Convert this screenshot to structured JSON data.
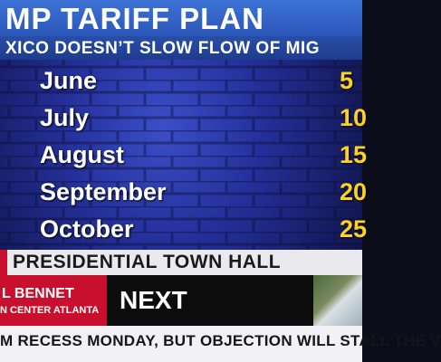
{
  "title": {
    "main": "MP TARIFF PLAN",
    "sub": "XICO DOESN’T SLOW FLOW OF MIG"
  },
  "schedule": [
    {
      "month": "June",
      "value": "5"
    },
    {
      "month": "July",
      "value": "10"
    },
    {
      "month": "August",
      "value": "15"
    },
    {
      "month": "September",
      "value": "20"
    },
    {
      "month": "October",
      "value": "25"
    }
  ],
  "show_banner": "PRESIDENTIAL TOWN HALL",
  "lower_third": {
    "host_name": "L BENNET",
    "host_location": "N CENTER ATLANTA",
    "next_label": "NEXT"
  },
  "ticker": "M RECESS MONDAY, BUT OBJECTION WILL STALL THE V",
  "colors": {
    "title_blue": "#3d73d6",
    "value_yellow": "#ffd21f",
    "accent_red": "#c8102e"
  }
}
